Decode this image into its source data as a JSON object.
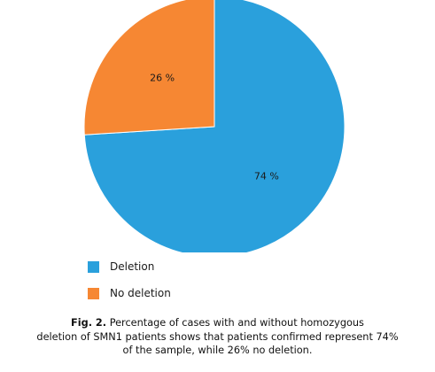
{
  "chart_data": {
    "type": "pie",
    "slices": [
      {
        "name": "Deletion",
        "value": 74,
        "label": "74 %",
        "color": "#2aa0dc"
      },
      {
        "name": "No deletion",
        "value": 26,
        "label": "26 %",
        "color": "#f68733"
      }
    ],
    "start_angle_deg": 0,
    "direction": "clockwise",
    "legend_position": "bottom-left"
  },
  "legend": {
    "items": [
      {
        "label": "Deletion",
        "color": "#2aa0dc"
      },
      {
        "label": "No deletion",
        "color": "#f68733"
      }
    ]
  },
  "caption": {
    "label": "Fig. 2.",
    "line1": "Percentage of cases with and without homozygous",
    "line2": "deletion of SMN1 patients shows that patients confirmed represent 74%",
    "line3": "of the sample, while 26% no deletion."
  }
}
